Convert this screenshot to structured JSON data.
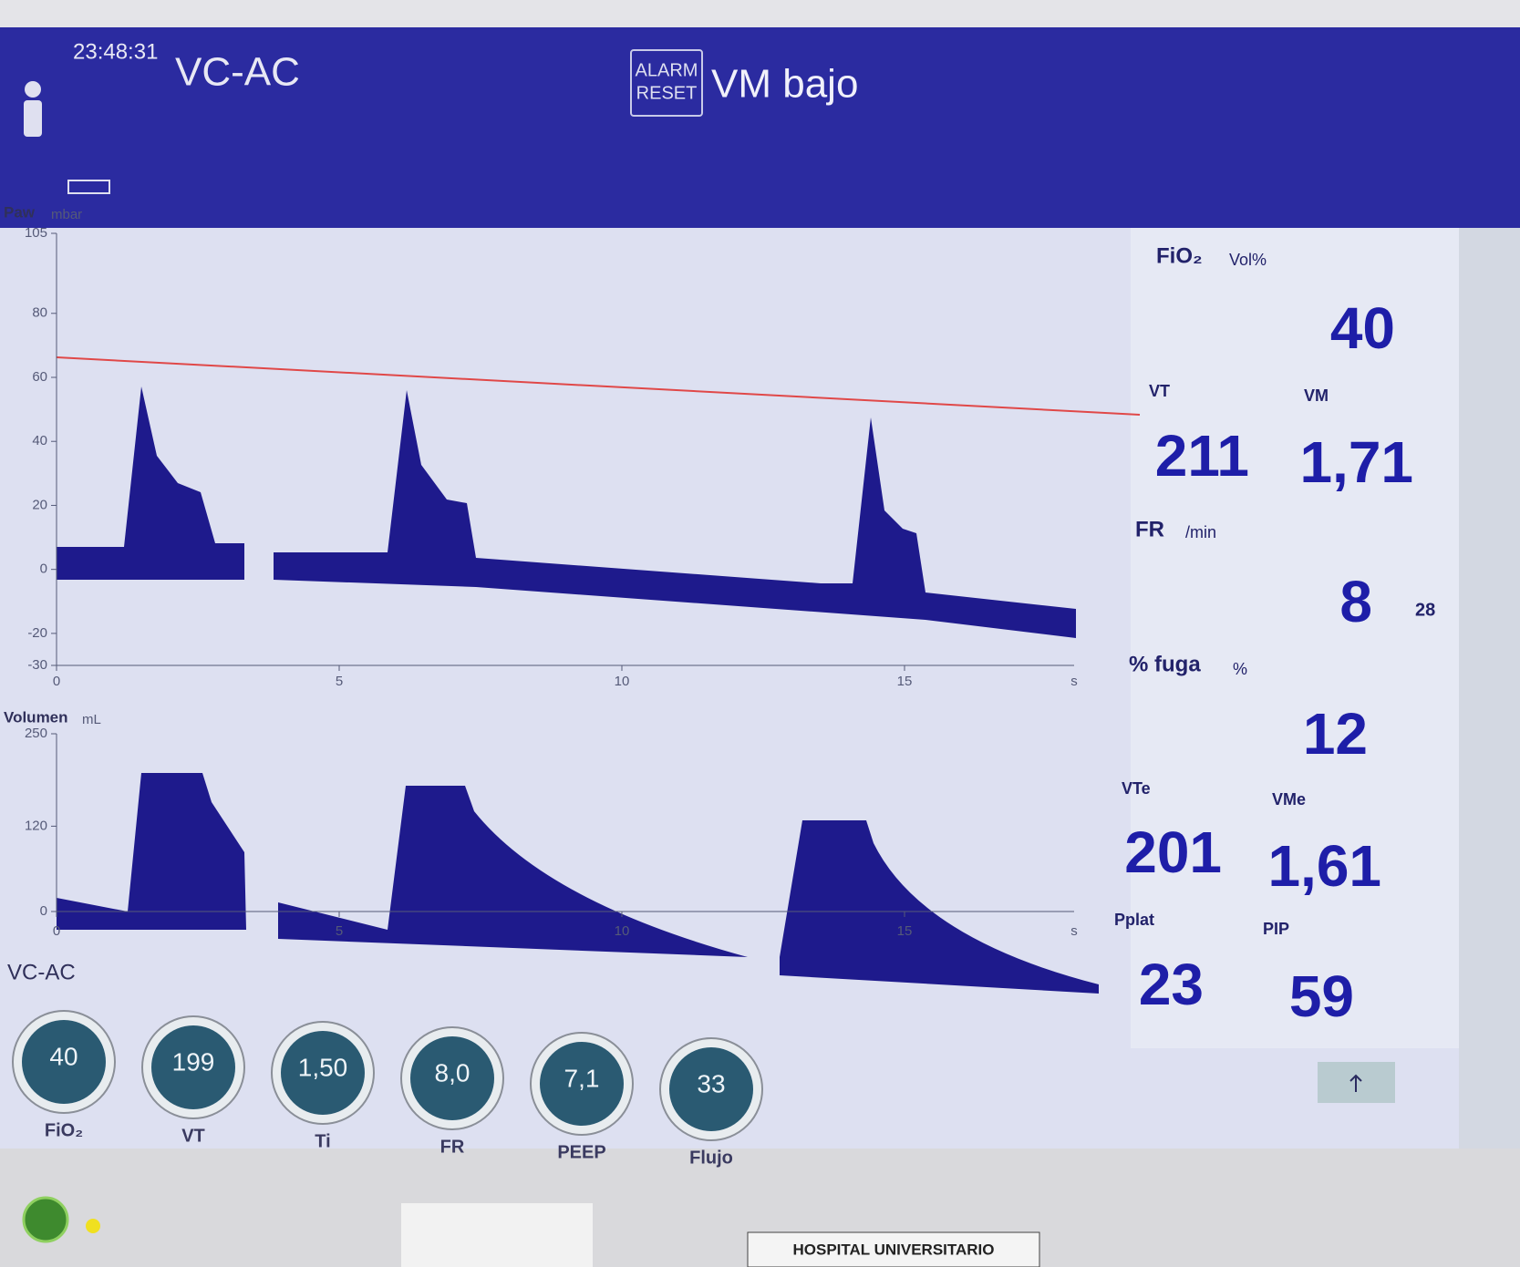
{
  "header": {
    "time": "23:48:31",
    "mode": "VC-AC",
    "alarm_button": [
      "ALARM",
      "RESET"
    ],
    "alarm_message": "VM bajo"
  },
  "paw_chart": {
    "label": "Paw",
    "unit": "mbar",
    "yticks": [
      105,
      80,
      60,
      40,
      20,
      0,
      -20,
      -30
    ],
    "xticks": [
      0,
      5,
      10,
      15
    ],
    "x_unit": "s"
  },
  "volume_chart": {
    "label": "Volumen",
    "unit": "mL",
    "yticks": [
      250,
      120,
      0
    ],
    "xticks": [
      0,
      5,
      10,
      15
    ],
    "x_unit": "s"
  },
  "mode_label": "VC-AC",
  "measurements": {
    "fio2": {
      "label": "FiO₂",
      "unit": "Vol%",
      "value": "40"
    },
    "vt": {
      "label": "VT",
      "value": "211"
    },
    "vm": {
      "label": "VM",
      "value": "1,71"
    },
    "fr": {
      "label": "FR",
      "unit": "/min",
      "value": "8",
      "limit": "28"
    },
    "fuga": {
      "label": "% fuga",
      "unit": "%",
      "value": "12"
    },
    "vte": {
      "label": "VTe",
      "value": "201"
    },
    "vme": {
      "label": "VMe",
      "value": "1,61"
    },
    "pplat": {
      "label": "Pplat",
      "value": "23"
    },
    "pip": {
      "label": "PIP",
      "value": "59"
    }
  },
  "controls": [
    {
      "label": "FiO₂",
      "value": "40"
    },
    {
      "label": "VT",
      "value": "199"
    },
    {
      "label": "Ti",
      "value": "1,50"
    },
    {
      "label": "FR",
      "value": "8,0"
    },
    {
      "label": "PEEP",
      "value": "7,1"
    },
    {
      "label": "Flujo",
      "value": "33"
    }
  ],
  "footer": {
    "label": "HOSPITAL UNIVERSITARIO"
  }
}
